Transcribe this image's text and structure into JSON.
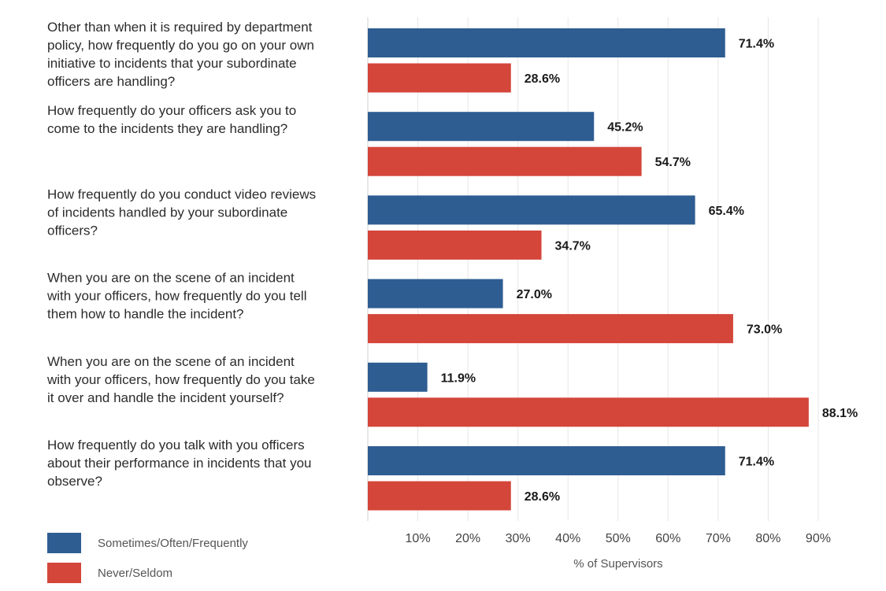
{
  "chart_data": {
    "type": "bar",
    "orientation": "horizontal",
    "title": "",
    "xlabel": "% of Supervisors",
    "ylabel": "",
    "xlim": [
      0,
      100
    ],
    "grid": true,
    "legend_position": "bottom-left",
    "categories": [
      "Other than when it is required by department policy, how frequently do you go on your own initiative to incidents that your subordinate officers are handling?",
      "How frequently do your officers ask you to come to the incidents they are handling?",
      "How frequently do you conduct video reviews of incidents handled by your subordinate officers?",
      "When you are on the scene of an incident with your officers, how frequently do you tell them how to handle the incident?",
      "When you are on the scene of an incident with your officers, how frequently do you take it over and handle the incident yourself?",
      "How frequently do you talk with you officers about their performance in incidents that you observe?"
    ],
    "category_lines": [
      [
        "Other than when it is required by department",
        "policy, how frequently do you go on your own",
        "initiative to incidents that your subordinate",
        "officers are handling?"
      ],
      [
        "How frequently do your officers ask you to",
        "come to the incidents they are handling?"
      ],
      [
        "How frequently do you conduct video reviews",
        "of incidents handled by your subordinate",
        "officers?"
      ],
      [
        "When you are on the scene of an incident",
        "with your officers, how frequently do you tell",
        "them how to handle the incident?"
      ],
      [
        "When you are on the scene of an incident",
        "with your officers, how frequently do you take",
        "it over and handle the incident yourself?"
      ],
      [
        "How frequently do you talk with you officers",
        "about their performance in incidents that you",
        "observe?"
      ]
    ],
    "series": [
      {
        "name": "Sometimes/Often/Frequently",
        "color": "#2e5d92",
        "values": [
          71.4,
          45.2,
          65.4,
          27.0,
          11.9,
          71.4
        ],
        "labels": [
          "71.4%",
          "45.2%",
          "65.4%",
          "27.0%",
          "11.9%",
          "71.4%"
        ]
      },
      {
        "name": "Never/Seldom",
        "color": "#d4463a",
        "values": [
          28.6,
          54.7,
          34.7,
          73.0,
          88.1,
          28.6
        ],
        "labels": [
          "28.6%",
          "54.7%",
          "34.7%",
          "73.0%",
          "88.1%",
          "28.6%"
        ]
      }
    ],
    "x_ticks": [
      10,
      20,
      30,
      40,
      50,
      60,
      70,
      80,
      90
    ],
    "x_tick_labels": [
      "10%",
      "20%",
      "30%",
      "40%",
      "50%",
      "60%",
      "70%",
      "80%",
      "90%"
    ]
  }
}
